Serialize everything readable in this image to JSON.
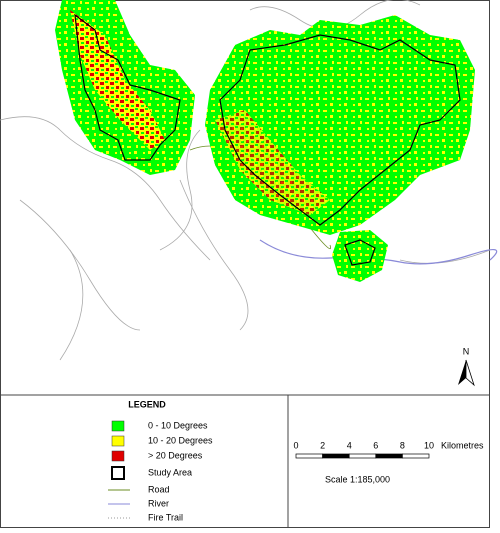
{
  "legend": {
    "title": "LEGEND",
    "items": [
      {
        "label": "0 - 10 Degrees",
        "color": "#00ff00",
        "kind": "fill"
      },
      {
        "label": "10 - 20 Degrees",
        "color": "#ffff00",
        "kind": "fill"
      },
      {
        "label": "> 20 Degrees",
        "color": "#e00000",
        "kind": "fill"
      },
      {
        "label": "Study Area",
        "color": "#000000",
        "kind": "outline"
      },
      {
        "label": "Road",
        "color": "#6b8e23",
        "kind": "line"
      },
      {
        "label": "River",
        "color": "#8a8ad8",
        "kind": "line"
      },
      {
        "label": "Fire Trail",
        "color": "#999999",
        "kind": "dotted"
      }
    ]
  },
  "north_arrow": {
    "label": "N"
  },
  "scale_bar": {
    "ticks": [
      "0",
      "2",
      "4",
      "6",
      "8",
      "10"
    ],
    "unit": "Kilometres",
    "scale": "Scale 1:185,000"
  }
}
